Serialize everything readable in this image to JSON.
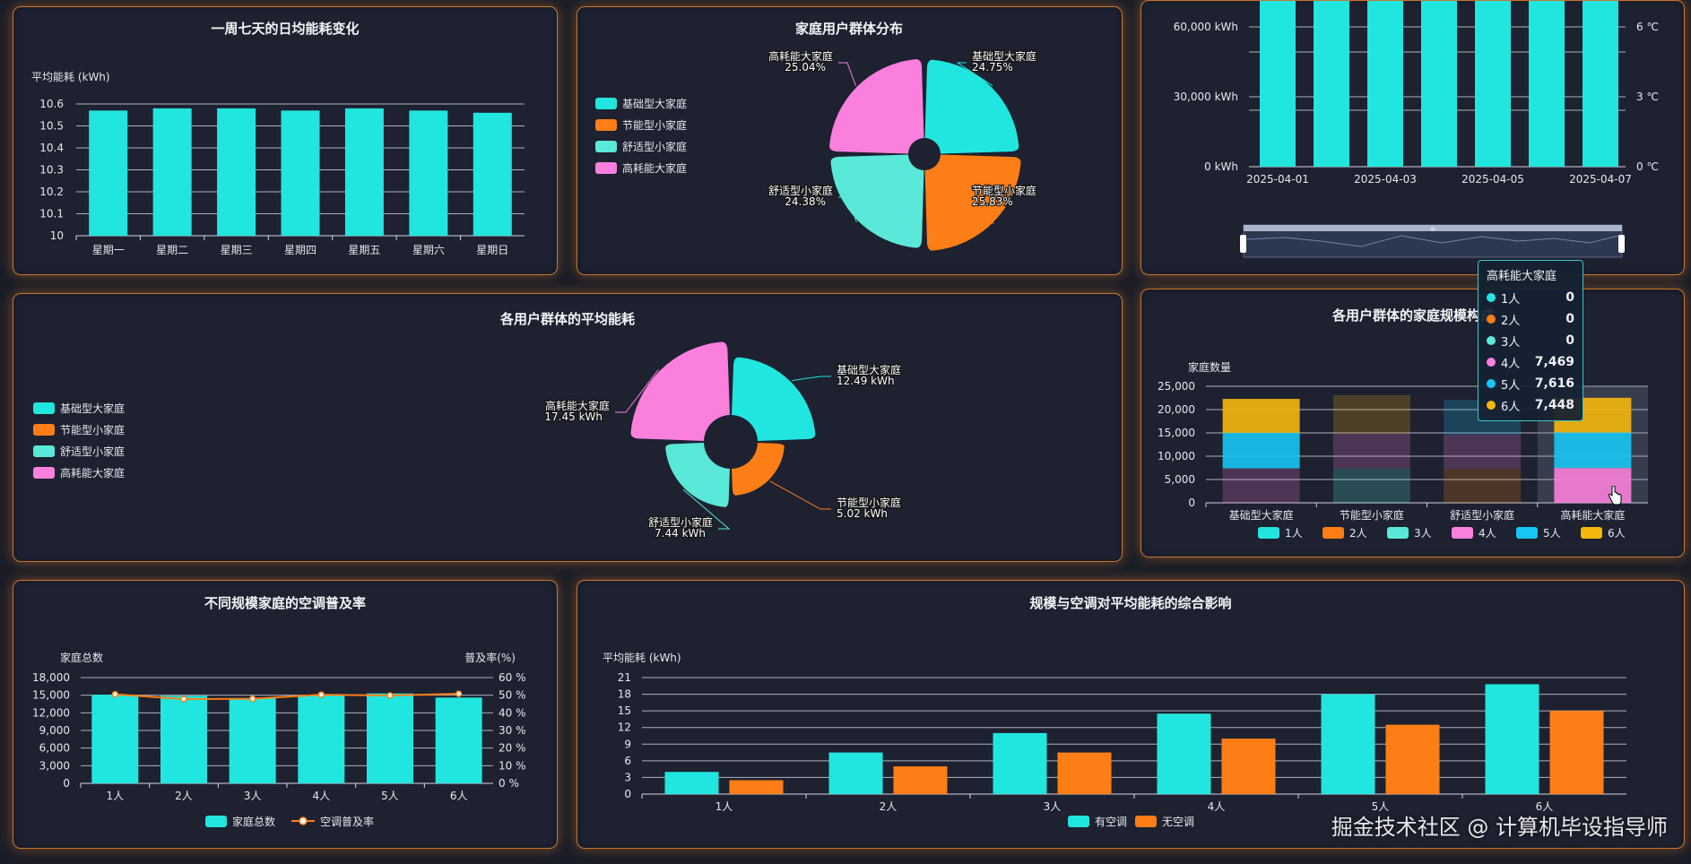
{
  "colors": {
    "teal": "#21e6df",
    "orange": "#fd7e16",
    "mint": "#5ae8d8",
    "pink": "#fb7fdc",
    "sky": "#17c6f4",
    "gold": "#f5b70d"
  },
  "panel1": {
    "title": "一周七天的日均能耗变化",
    "chart_data": {
      "type": "bar",
      "title": "一周七天的日均能耗变化",
      "ylabel": "平均能耗 (kWh)",
      "categories": [
        "星期一",
        "星期二",
        "星期三",
        "星期四",
        "星期五",
        "星期六",
        "星期日"
      ],
      "values": [
        10.57,
        10.58,
        10.58,
        10.57,
        10.58,
        10.57,
        10.56
      ],
      "ylim": [
        10,
        10.6
      ],
      "yticks": [
        "10",
        "10.1",
        "10.2",
        "10.3",
        "10.4",
        "10.5",
        "10.6"
      ]
    }
  },
  "panel2": {
    "title": "家庭用户群体分布",
    "legend": [
      "基础型大家庭",
      "节能型小家庭",
      "舒适型小家庭",
      "高耗能大家庭"
    ],
    "chart_data": {
      "type": "pie",
      "title": "家庭用户群体分布",
      "categories": [
        "基础型大家庭",
        "节能型小家庭",
        "舒适型小家庭",
        "高耗能大家庭"
      ],
      "values": [
        24.75,
        25.83,
        24.38,
        25.04
      ],
      "labels": [
        "24.75%",
        "25.83%",
        "24.38%",
        "25.04%"
      ]
    }
  },
  "panel3": {
    "chart_data": {
      "type": "bar",
      "x_ticks": [
        "2025-04-01",
        "2025-04-03",
        "2025-04-05",
        "2025-04-07"
      ],
      "yticks_left": [
        "0 kWh",
        "30,000 kWh",
        "60,000 kWh"
      ],
      "yticks_right": [
        "0 ℃",
        "3 ℃",
        "6 ℃"
      ],
      "bar_count": 7
    },
    "zoom_handle_label": "≡"
  },
  "panel4": {
    "title": "各用户群体的平均能耗",
    "legend": [
      "基础型大家庭",
      "节能型小家庭",
      "舒适型小家庭",
      "高耗能大家庭"
    ],
    "chart_data": {
      "type": "pie",
      "title": "各用户群体的平均能耗",
      "categories": [
        "基础型大家庭",
        "节能型小家庭",
        "舒适型小家庭",
        "高耗能大家庭"
      ],
      "values": [
        12.49,
        5.02,
        7.44,
        17.45
      ],
      "labels": [
        "12.49 kWh",
        "5.02 kWh",
        "7.44 kWh",
        "17.45 kWh"
      ]
    }
  },
  "panel5": {
    "title": "各用户群体的家庭规模构成",
    "chart_data": {
      "type": "bar",
      "stacked": true,
      "title": "各用户群体的家庭规模构成",
      "ylabel": "家庭数量",
      "categories": [
        "基础型大家庭",
        "节能型小家庭",
        "舒适型小家庭",
        "高耗能大家庭"
      ],
      "ylim": [
        0,
        25000
      ],
      "yticks": [
        "0",
        "5,000",
        "10,000",
        "15,000",
        "20,000",
        "25,000"
      ],
      "series": [
        {
          "name": "1人",
          "values": [
            0,
            0,
            0,
            0
          ]
        },
        {
          "name": "2人",
          "values": [
            0,
            0,
            7300,
            0
          ]
        },
        {
          "name": "3人",
          "values": [
            0,
            7400,
            0,
            0
          ]
        },
        {
          "name": "4人",
          "values": [
            7400,
            7500,
            7300,
            7469
          ]
        },
        {
          "name": "5人",
          "values": [
            7600,
            0,
            7500,
            7616
          ]
        },
        {
          "name": "6人",
          "values": [
            7300,
            8200,
            0,
            7448
          ]
        }
      ]
    },
    "tooltip": {
      "title": "高耗能大家庭",
      "rows": [
        {
          "name": "1人",
          "value": "0"
        },
        {
          "name": "2人",
          "value": "0"
        },
        {
          "name": "3人",
          "value": "0"
        },
        {
          "name": "4人",
          "value": "7,469"
        },
        {
          "name": "5人",
          "value": "7,616"
        },
        {
          "name": "6人",
          "value": "7,448"
        }
      ]
    }
  },
  "panel6": {
    "title": "不同规模家庭的空调普及率",
    "chart_data": {
      "type": "bar",
      "title": "不同规模家庭的空调普及率",
      "ylabel": "家庭总数",
      "ylabel_right": "普及率(%)",
      "categories": [
        "1人",
        "2人",
        "3人",
        "4人",
        "5人",
        "6人"
      ],
      "ylim": [
        0,
        18000
      ],
      "ylim_right": [
        0,
        60
      ],
      "yticks": [
        "0",
        "3,000",
        "6,000",
        "9,000",
        "12,000",
        "15,000",
        "18,000"
      ],
      "yticks_right": [
        "0 %",
        "10 %",
        "20 %",
        "30 %",
        "40 %",
        "50 %",
        "60 %"
      ],
      "series": [
        {
          "name": "家庭总数",
          "type": "bar",
          "values": [
            15100,
            14900,
            14500,
            15000,
            15300,
            14600
          ]
        },
        {
          "name": "空调普及率",
          "type": "line",
          "values": [
            50.5,
            47.8,
            48.0,
            50.3,
            49.8,
            50.8
          ]
        }
      ]
    }
  },
  "panel7": {
    "title": "规模与空调对平均能耗的综合影响",
    "chart_data": {
      "type": "bar",
      "title": "规模与空调对平均能耗的综合影响",
      "ylabel": "平均能耗 (kWh)",
      "categories": [
        "1人",
        "2人",
        "3人",
        "4人",
        "5人",
        "6人"
      ],
      "ylim": [
        0,
        21
      ],
      "yticks": [
        "0",
        "3",
        "6",
        "9",
        "12",
        "15",
        "18",
        "21"
      ],
      "series": [
        {
          "name": "有空调",
          "values": [
            4.0,
            7.5,
            11.0,
            14.5,
            18.0,
            19.8
          ]
        },
        {
          "name": "无空调",
          "values": [
            2.5,
            5.0,
            7.5,
            10.0,
            12.5,
            15.0
          ]
        }
      ]
    }
  },
  "watermark": "掘金技术社区 @ 计算机毕设指导师"
}
